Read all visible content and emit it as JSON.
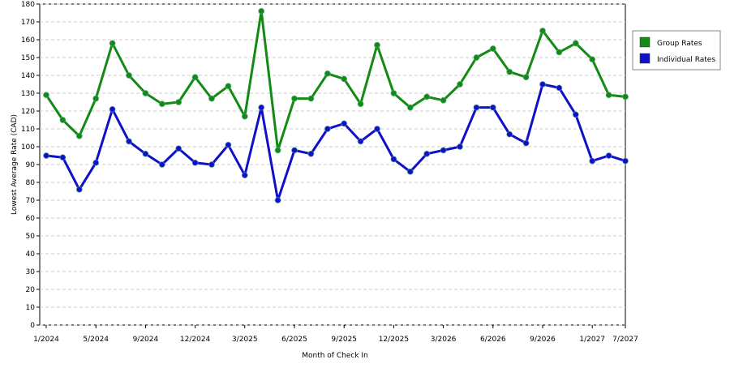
{
  "chart_data": {
    "type": "line",
    "x_label": "Month of Check In",
    "y_label": "Lowest Average Rate (CAD)",
    "categories": [
      "1/2024",
      null,
      null,
      "5/2024",
      null,
      null,
      "9/2024",
      null,
      null,
      "12/2024",
      null,
      null,
      "3/2025",
      null,
      null,
      "6/2025",
      null,
      null,
      "9/2025",
      null,
      null,
      "12/2025",
      null,
      null,
      "3/2026",
      null,
      null,
      "6/2026",
      null,
      null,
      "9/2026",
      null,
      null,
      "1/2027",
      null,
      "7/2027"
    ],
    "series": [
      {
        "name": "Group Rates",
        "color": "#138a13",
        "values": [
          129,
          115,
          106,
          127,
          158,
          140,
          130,
          124,
          125,
          139,
          127,
          134,
          117,
          176,
          98,
          127,
          127,
          141,
          138,
          124,
          157,
          130,
          122,
          128,
          126,
          135,
          150,
          155,
          142,
          139,
          165,
          153,
          158,
          149,
          129,
          128
        ]
      },
      {
        "name": "Individual Rates",
        "color": "#1010c8",
        "values": [
          95,
          94,
          76,
          91,
          121,
          103,
          96,
          90,
          99,
          91,
          90,
          101,
          84,
          122,
          70,
          98,
          96,
          110,
          113,
          103,
          110,
          93,
          86,
          96,
          98,
          100,
          122,
          122,
          107,
          102,
          135,
          133,
          118,
          92,
          95,
          92
        ]
      }
    ],
    "ylim": [
      0,
      180
    ],
    "yticks": [
      0,
      10,
      20,
      30,
      40,
      50,
      60,
      70,
      80,
      90,
      100,
      110,
      120,
      130,
      140,
      150,
      160,
      170,
      180
    ],
    "grid": true,
    "legend": "right"
  }
}
